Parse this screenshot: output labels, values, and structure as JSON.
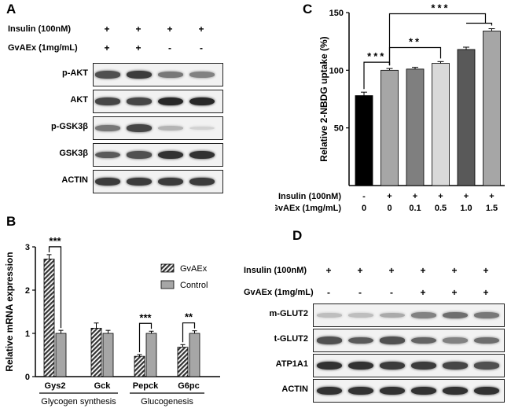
{
  "panels": {
    "A": "A",
    "B": "B",
    "C": "C",
    "D": "D"
  },
  "panelA": {
    "conditions": [
      {
        "label": "Insulin (100nM)",
        "signs": [
          "+",
          "+",
          "+",
          "+"
        ]
      },
      {
        "label": "GvAEx (1mg/mL)",
        "signs": [
          "+",
          "+",
          "-",
          "-"
        ]
      }
    ],
    "blots": [
      {
        "label": "p-AKT",
        "intensity": [
          0.75,
          0.85,
          0.55,
          0.5
        ]
      },
      {
        "label": "AKT",
        "intensity": [
          0.8,
          0.8,
          0.95,
          0.95
        ]
      },
      {
        "label": "p-GSK3β",
        "intensity": [
          0.55,
          0.8,
          0.25,
          0.1
        ]
      },
      {
        "label": "GSK3β",
        "intensity": [
          0.7,
          0.75,
          0.9,
          0.9
        ]
      },
      {
        "label": "ACTIN",
        "intensity": [
          0.85,
          0.85,
          0.85,
          0.85
        ]
      }
    ]
  },
  "panelD": {
    "conditions": [
      {
        "label": "Insulin (100nM)",
        "signs": [
          "+",
          "+",
          "+",
          "+",
          "+",
          "+"
        ]
      },
      {
        "label": "GvAEx (1mg/mL)",
        "signs": [
          "-",
          "-",
          "-",
          "+",
          "+",
          "+"
        ]
      }
    ],
    "blots": [
      {
        "label": "m-GLUT2",
        "intensity": [
          0.2,
          0.2,
          0.3,
          0.5,
          0.6,
          0.55
        ]
      },
      {
        "label": "t-GLUT2",
        "intensity": [
          0.75,
          0.7,
          0.75,
          0.65,
          0.5,
          0.6
        ]
      },
      {
        "label": "ATP1A1",
        "intensity": [
          0.9,
          0.9,
          0.85,
          0.85,
          0.8,
          0.75
        ]
      },
      {
        "label": "ACTIN",
        "intensity": [
          0.9,
          0.9,
          0.9,
          0.9,
          0.9,
          0.9
        ]
      }
    ]
  },
  "chart_data": [
    {
      "type": "bar",
      "panel": "B",
      "ylabel": "Relative mRNA expression",
      "ylim": [
        0,
        3
      ],
      "yticks": [
        0,
        1,
        2,
        3
      ],
      "categories": [
        "Gys2",
        "Gck",
        "Pepck",
        "G6pc"
      ],
      "groups": [
        {
          "label": "Glycogen synthesis",
          "categories": [
            "Gys2",
            "Gck"
          ]
        },
        {
          "label": "Glucogenesis",
          "categories": [
            "Pepck",
            "G6pc"
          ]
        }
      ],
      "series": [
        {
          "name": "GvAEx",
          "values": [
            2.72,
            1.12,
            0.47,
            0.68
          ],
          "errors": [
            0.1,
            0.12,
            0.04,
            0.06
          ],
          "color": "#333333",
          "pattern": "hatch"
        },
        {
          "name": "Control",
          "values": [
            1.0,
            1.0,
            1.0,
            1.0
          ],
          "errors": [
            0.07,
            0.07,
            0.05,
            0.06
          ],
          "color": "#a6a6a6",
          "pattern": "solid"
        }
      ],
      "legend": "top-right",
      "significance": [
        {
          "category": "Gys2",
          "label": "***"
        },
        {
          "category": "Pepck",
          "label": "***"
        },
        {
          "category": "G6pc",
          "label": "**"
        }
      ]
    },
    {
      "type": "bar",
      "panel": "C",
      "ylabel": "Relative 2-NBDG uptake (%)",
      "ylim": [
        0,
        150
      ],
      "yticks": [
        50,
        100,
        150
      ],
      "values": [
        78,
        100,
        101,
        106,
        118,
        134
      ],
      "errors": [
        3,
        1.5,
        1.5,
        1.5,
        2,
        2
      ],
      "colors": [
        "#000000",
        "#a6a6a6",
        "#7f7f7f",
        "#d9d9d9",
        "#595959",
        "#a6a6a6"
      ],
      "conditions": [
        {
          "label": "Insulin (100nM)",
          "values": [
            "-",
            "+",
            "+",
            "+",
            "+",
            "+"
          ]
        },
        {
          "label": "GvAEx (1mg/mL)",
          "values": [
            "0",
            "0",
            "0.1",
            "0.5",
            "1.0",
            "1.5"
          ]
        }
      ],
      "significance": [
        {
          "from": 0,
          "to": 1,
          "label": "***"
        },
        {
          "from": 1,
          "to": 3,
          "label": "**"
        },
        {
          "from": 1,
          "to": 5,
          "label": "***"
        }
      ]
    }
  ]
}
